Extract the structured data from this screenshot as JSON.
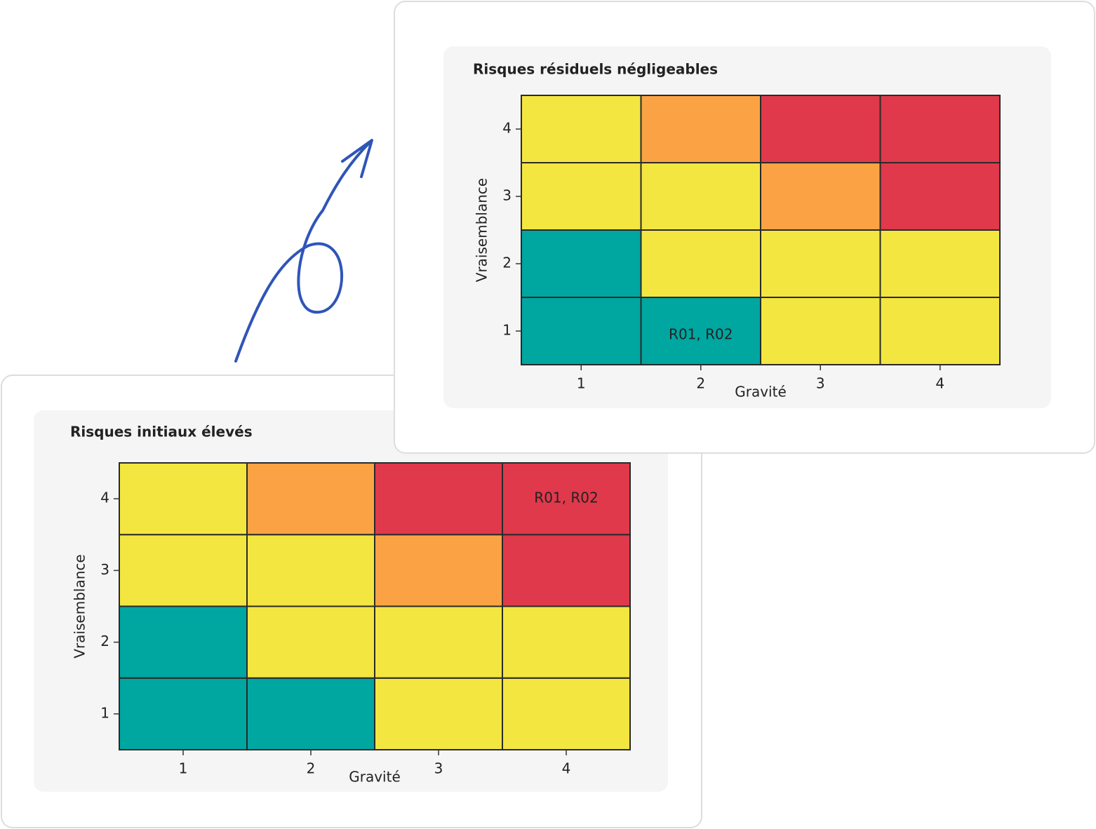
{
  "chart_data": [
    {
      "type": "heatmap",
      "title": "Risques initiaux élevés",
      "xlabel": "Gravité",
      "ylabel": "Vraisemblance",
      "x": [
        1,
        2,
        3,
        4
      ],
      "y": [
        1,
        2,
        3,
        4
      ],
      "colors": [
        [
          "#00a6a0",
          "#00a6a0",
          "#f3e641",
          "#f3e641"
        ],
        [
          "#00a6a0",
          "#f3e641",
          "#f3e641",
          "#f3e641"
        ],
        [
          "#f3e641",
          "#f3e641",
          "#fba344",
          "#e0394b"
        ],
        [
          "#f3e641",
          "#fba344",
          "#e0394b",
          "#e0394b"
        ]
      ],
      "annotations": [
        {
          "text": "R01, R02",
          "x": 4,
          "y": 4
        }
      ]
    },
    {
      "type": "heatmap",
      "title": "Risques résiduels négligeables",
      "xlabel": "Gravité",
      "ylabel": "Vraisemblance",
      "x": [
        1,
        2,
        3,
        4
      ],
      "y": [
        1,
        2,
        3,
        4
      ],
      "colors": [
        [
          "#00a6a0",
          "#00a6a0",
          "#f3e641",
          "#f3e641"
        ],
        [
          "#00a6a0",
          "#f3e641",
          "#f3e641",
          "#f3e641"
        ],
        [
          "#f3e641",
          "#f3e641",
          "#fba344",
          "#e0394b"
        ],
        [
          "#f3e641",
          "#fba344",
          "#e0394b",
          "#e0394b"
        ]
      ],
      "annotations": [
        {
          "text": "R01, R02",
          "x": 2,
          "y": 1
        }
      ]
    }
  ]
}
